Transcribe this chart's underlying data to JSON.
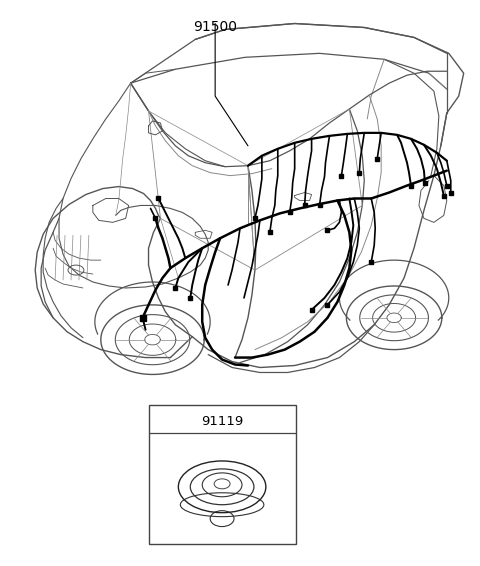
{
  "bg_color": "#ffffff",
  "label_91500": "91500",
  "label_91119": "91119",
  "fig_width": 4.8,
  "fig_height": 5.66,
  "dpi": 100,
  "car_color": "#555555",
  "wire_color": "#000000",
  "line_color": "#888888"
}
